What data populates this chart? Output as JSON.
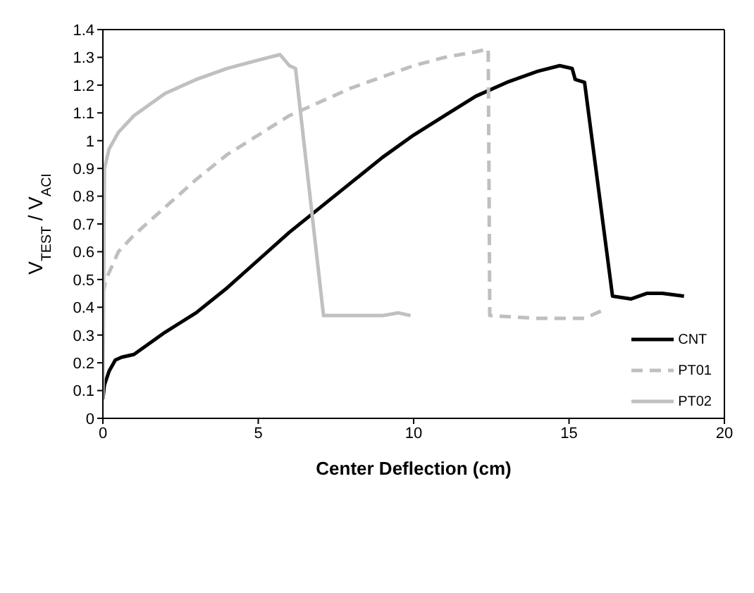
{
  "chart_data": {
    "type": "line",
    "xlabel": "Center Deflection (cm)",
    "ylabel": "V$_{TEST}$ / V$_{ACI}$",
    "xlim": [
      0,
      20
    ],
    "xticks": [
      0,
      5,
      10,
      15,
      20
    ],
    "ylim": [
      0,
      1.4
    ],
    "yticks": [
      0,
      0.1,
      0.2,
      0.3,
      0.4,
      0.5,
      0.6,
      0.7,
      0.8,
      0.9,
      1,
      1.1,
      1.2,
      1.3,
      1.4
    ],
    "grid": false,
    "legend": "bottom right",
    "marker": "none",
    "series": [
      {
        "name": "CNT",
        "color": "#000000",
        "line_style": "solid",
        "x": [
          0,
          0.05,
          0.2,
          0.4,
          0.6,
          1,
          1.5,
          2,
          3,
          4,
          5,
          6,
          7,
          8,
          9,
          10,
          11,
          12,
          13,
          14,
          14.7,
          15.1,
          15.2,
          15.5,
          16.4,
          17,
          17.5,
          18,
          18.7
        ],
        "values": [
          0.07,
          0.12,
          0.17,
          0.21,
          0.22,
          0.23,
          0.27,
          0.31,
          0.38,
          0.47,
          0.57,
          0.67,
          0.76,
          0.85,
          0.94,
          1.02,
          1.09,
          1.16,
          1.21,
          1.25,
          1.27,
          1.26,
          1.22,
          1.21,
          0.44,
          0.43,
          0.45,
          0.45,
          0.44
        ]
      },
      {
        "name": "PT01",
        "color": "#bfbfbf",
        "line_style": "dashed",
        "x": [
          0,
          0.1,
          0.5,
          1,
          2,
          3,
          4,
          5,
          6,
          7,
          8,
          9,
          10,
          11,
          12,
          12.4,
          12.45,
          14,
          15.5,
          16.1
        ],
        "values": [
          0.45,
          0.5,
          0.6,
          0.66,
          0.76,
          0.86,
          0.95,
          1.02,
          1.09,
          1.14,
          1.19,
          1.23,
          1.27,
          1.3,
          1.32,
          1.33,
          0.37,
          0.36,
          0.36,
          0.39
        ]
      },
      {
        "name": "PT02",
        "color": "#c0c0c0",
        "line_style": "solid",
        "x": [
          0,
          0.05,
          0.2,
          0.5,
          1,
          2,
          3,
          4,
          5,
          5.7,
          6,
          6.2,
          7.1,
          8,
          9,
          9.5,
          9.9
        ],
        "values": [
          0.07,
          0.9,
          0.97,
          1.03,
          1.09,
          1.17,
          1.22,
          1.26,
          1.29,
          1.31,
          1.27,
          1.26,
          0.37,
          0.37,
          0.37,
          0.38,
          0.37
        ]
      }
    ]
  }
}
